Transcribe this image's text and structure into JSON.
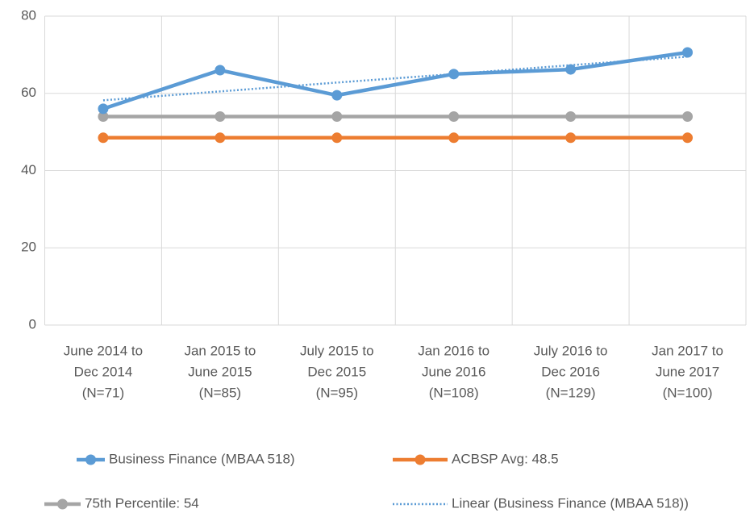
{
  "chart_data": {
    "type": "line",
    "categories": [
      [
        "June 2014 to",
        "Dec 2014",
        "(N=71)"
      ],
      [
        "Jan 2015 to",
        "June 2015",
        "(N=85)"
      ],
      [
        "July 2015 to",
        "Dec 2015",
        "(N=95)"
      ],
      [
        "Jan 2016 to",
        "June 2016",
        "(N=108)"
      ],
      [
        "July 2016 to",
        "Dec 2016",
        "(N=129)"
      ],
      [
        "Jan 2017 to",
        "June 2017",
        "(N=100)"
      ]
    ],
    "series": [
      {
        "name": "Business Finance (MBAA 518)",
        "color": "#5b9bd5",
        "values": [
          56,
          66,
          59.5,
          65,
          66.2,
          70.6
        ],
        "marker": true,
        "style": "solid"
      },
      {
        "name": "ACBSP Avg:  48.5",
        "color": "#ed7d31",
        "values": [
          48.5,
          48.5,
          48.5,
          48.5,
          48.5,
          48.5
        ],
        "marker": true,
        "style": "solid"
      },
      {
        "name": "75th Percentile:  54",
        "color": "#a5a5a5",
        "values": [
          54,
          54,
          54,
          54,
          54,
          54
        ],
        "marker": true,
        "style": "solid"
      },
      {
        "name": "Linear (Business Finance (MBAA 518))",
        "color": "#5b9bd5",
        "values": [
          58.2,
          60.5,
          62.8,
          65.0,
          67.3,
          69.5
        ],
        "marker": false,
        "style": "dotted"
      }
    ],
    "ylim": [
      0,
      80
    ],
    "yticks": [
      0,
      20,
      40,
      60,
      80
    ],
    "grid": true,
    "legend": "bottom"
  }
}
